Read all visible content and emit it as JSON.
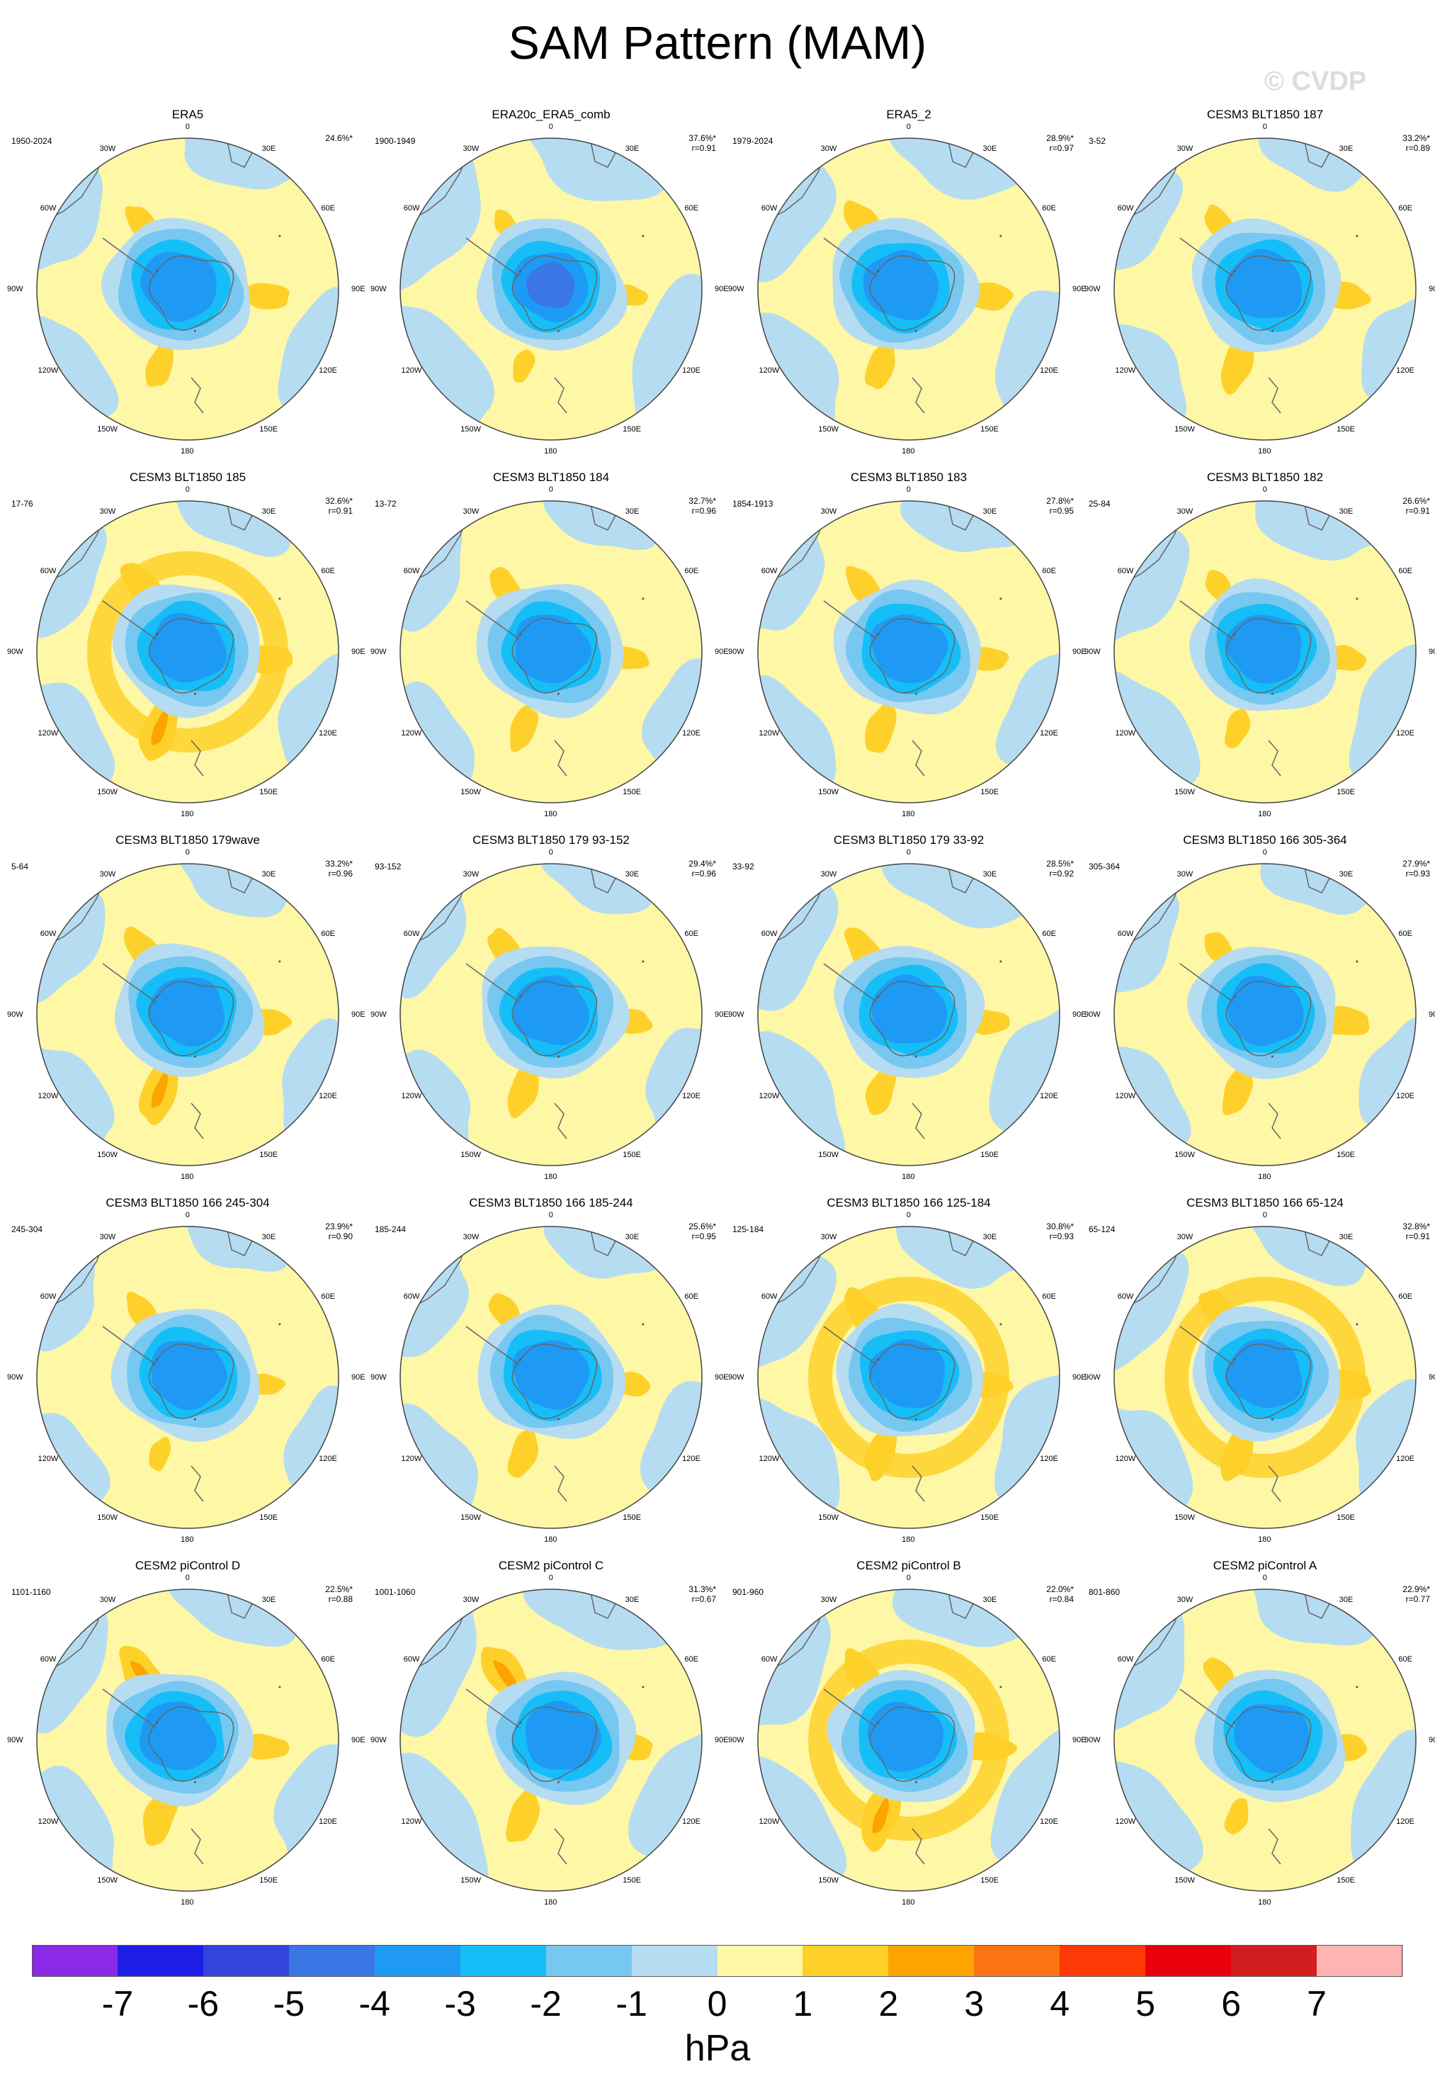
{
  "title": "SAM Pattern (MAM)",
  "watermark": "© CVDP",
  "unit": "hPa",
  "colors": {
    "scale": [
      "#8a2ae6",
      "#1e1ee8",
      "#3344dc",
      "#3a76e4",
      "#1e9af4",
      "#16bef8",
      "#76c8f0",
      "#b6dcf2",
      "#fdf7a6",
      "#fed12a",
      "#fda400",
      "#fc7411",
      "#fd3a05",
      "#e8000c",
      "#d21e1e",
      "#fcb4b4"
    ],
    "coast": "#666666",
    "dot": "#555555"
  },
  "colorbar_ticks": [
    "-7",
    "-6",
    "-5",
    "-4",
    "-3",
    "-2",
    "-1",
    "0",
    "1",
    "2",
    "3",
    "4",
    "5",
    "6",
    "7"
  ],
  "lon_labels": {
    "l0": "0",
    "l30e": "30E",
    "l60e": "60E",
    "l90e": "90E",
    "l120e": "120E",
    "l150e": "150E",
    "l180": "180",
    "l150w": "150W",
    "l120w": "120W",
    "l90w": "90W",
    "l60w": "60W",
    "l30w": "30W"
  },
  "panels": [
    {
      "title": "ERA5",
      "period": "1950-2024",
      "pct": "24.6%*",
      "r": "",
      "pattern": {
        "low": 0,
        "ring": 0,
        "low_dx": -12,
        "pos1": 0.6,
        "pos2": 0.7,
        "pos3": 0.6,
        "blue_ring": 0.3
      }
    },
    {
      "title": "ERA20c_ERA5_comb",
      "period": "1900-1949",
      "pct": "37.6%*",
      "r": "r=0.91",
      "pattern": {
        "low": 1,
        "ring": 0,
        "low_dx": 0,
        "pos1": 0.2,
        "pos2": 0.3,
        "pos3": 0.2,
        "blue_ring": 0.7
      }
    },
    {
      "title": "ERA5_2",
      "period": "1979-2024",
      "pct": "28.9%*",
      "r": "r=0.97",
      "pattern": {
        "low": 0,
        "ring": 0,
        "low_dx": -10,
        "pos1": 0.9,
        "pos2": 0.8,
        "pos3": 0.7,
        "blue_ring": 0.5
      }
    },
    {
      "title": "CESM3 BLT1850 187",
      "period": "3-52",
      "pct": "33.2%*",
      "r": "r=0.89",
      "pattern": {
        "low": 0,
        "ring": 0,
        "low_dx": 0,
        "pos1": 0.5,
        "pos2": 0.8,
        "pos3": 0.9,
        "blue_ring": 0.2
      }
    },
    {
      "title": "CESM3 BLT1850 185",
      "period": "17-76",
      "pct": "32.6%*",
      "r": "r=0.91",
      "pattern": {
        "low": 0,
        "ring": 1,
        "low_dx": 0,
        "pos1": 1.0,
        "pos2": 0.9,
        "pos3": 1.3,
        "blue_ring": 0.3
      }
    },
    {
      "title": "CESM3 BLT1850 184",
      "period": "13-72",
      "pct": "32.7%*",
      "r": "r=0.96",
      "pattern": {
        "low": 0,
        "ring": 0,
        "low_dx": 0,
        "pos1": 0.6,
        "pos2": 0.4,
        "pos3": 0.6,
        "blue_ring": 0.2
      }
    },
    {
      "title": "CESM3 BLT1850 183",
      "period": "1854-1913",
      "pct": "27.8%*",
      "r": "r=0.95",
      "pattern": {
        "low": 0,
        "ring": 0,
        "low_dx": 0,
        "pos1": 0.7,
        "pos2": 0.5,
        "pos3": 0.8,
        "blue_ring": 0.3
      }
    },
    {
      "title": "CESM3 BLT1850 182",
      "period": "25-84",
      "pct": "26.6%*",
      "r": "r=0.91",
      "pattern": {
        "low": 0,
        "ring": 0,
        "low_dx": 0,
        "pos1": 0.4,
        "pos2": 0.6,
        "pos3": 0.4,
        "blue_ring": 0.5
      }
    },
    {
      "title": "CESM3 BLT1850 179wave",
      "period": "5-64",
      "pct": "33.2%*",
      "r": "r=0.96",
      "pattern": {
        "low": 0,
        "ring": 0,
        "low_dx": 0,
        "pos1": 0.8,
        "pos2": 0.7,
        "pos3": 1.3,
        "blue_ring": 0.3
      }
    },
    {
      "title": "CESM3 BLT1850 179 93-152",
      "period": "93-152",
      "pct": "29.4%*",
      "r": "r=0.96",
      "pattern": {
        "low": 0,
        "ring": 0,
        "low_dx": 0,
        "pos1": 0.7,
        "pos2": 0.6,
        "pos3": 0.8,
        "blue_ring": 0.2
      }
    },
    {
      "title": "CESM3 BLT1850 179 33-92",
      "period": "33-92",
      "pct": "28.5%*",
      "r": "r=0.92",
      "pattern": {
        "low": 0,
        "ring": 0,
        "low_dx": 0,
        "pos1": 0.8,
        "pos2": 0.6,
        "pos3": 0.7,
        "blue_ring": 0.6
      }
    },
    {
      "title": "CESM3 BLT1850 166 305-364",
      "period": "305-364",
      "pct": "27.9%*",
      "r": "r=0.93",
      "pattern": {
        "low": 0,
        "ring": 0,
        "low_dx": 0,
        "pos1": 0.5,
        "pos2": 0.9,
        "pos3": 0.7,
        "blue_ring": 0.2
      }
    },
    {
      "title": "CESM3 BLT1850 166 245-304",
      "period": "245-304",
      "pct": "23.9%*",
      "r": "r=0.90",
      "pattern": {
        "low": 0,
        "ring": 0,
        "low_dx": 0,
        "pos1": 0.6,
        "pos2": 0.3,
        "pos3": 0.2,
        "blue_ring": 0.1
      }
    },
    {
      "title": "CESM3 BLT1850 166 185-244",
      "period": "185-244",
      "pct": "25.6%*",
      "r": "r=0.95",
      "pattern": {
        "low": 0,
        "ring": 0,
        "low_dx": 0,
        "pos1": 0.6,
        "pos2": 0.5,
        "pos3": 0.7,
        "blue_ring": 0.3
      }
    },
    {
      "title": "CESM3 BLT1850 166 125-184",
      "period": "125-184",
      "pct": "30.8%*",
      "r": "r=0.93",
      "pattern": {
        "low": 0,
        "ring": 1,
        "low_dx": 0,
        "pos1": 0.9,
        "pos2": 0.7,
        "pos3": 0.8,
        "blue_ring": 0.5
      }
    },
    {
      "title": "CESM3 BLT1850 166 65-124",
      "period": "65-124",
      "pct": "32.8%*",
      "r": "r=0.91",
      "pattern": {
        "low": 0,
        "ring": 1,
        "low_dx": 0,
        "pos1": 0.9,
        "pos2": 1.0,
        "pos3": 0.9,
        "blue_ring": 0.4
      }
    },
    {
      "title": "CESM2 piControl D",
      "period": "1101-1160",
      "pct": "22.5%*",
      "r": "r=0.88",
      "pattern": {
        "low": 0,
        "ring": 0,
        "low_dx": -15,
        "pos1": 1.3,
        "pos2": 0.6,
        "pos3": 1.0,
        "blue_ring": 0.4
      }
    },
    {
      "title": "CESM2 piControl C",
      "period": "1001-1060",
      "pct": "31.3%*",
      "r": "r=0.67",
      "pattern": {
        "low": 0,
        "ring": 0,
        "low_dx": 15,
        "pos1": 1.4,
        "pos2": 0.7,
        "pos3": 0.9,
        "blue_ring": 0.6
      }
    },
    {
      "title": "CESM2 piControl B",
      "period": "901-960",
      "pct": "22.0%*",
      "r": "r=0.84",
      "pattern": {
        "low": 0,
        "ring": 1,
        "low_dx": -5,
        "pos1": 1.0,
        "pos2": 0.9,
        "pos3": 1.3,
        "blue_ring": 0.5
      }
    },
    {
      "title": "CESM2 piControl A",
      "period": "801-860",
      "pct": "22.9%*",
      "r": "r=0.77",
      "pattern": {
        "low": 0,
        "ring": 0,
        "low_dx": 10,
        "pos1": 0.5,
        "pos2": 0.7,
        "pos3": 0.3,
        "blue_ring": 0.5
      }
    }
  ]
}
